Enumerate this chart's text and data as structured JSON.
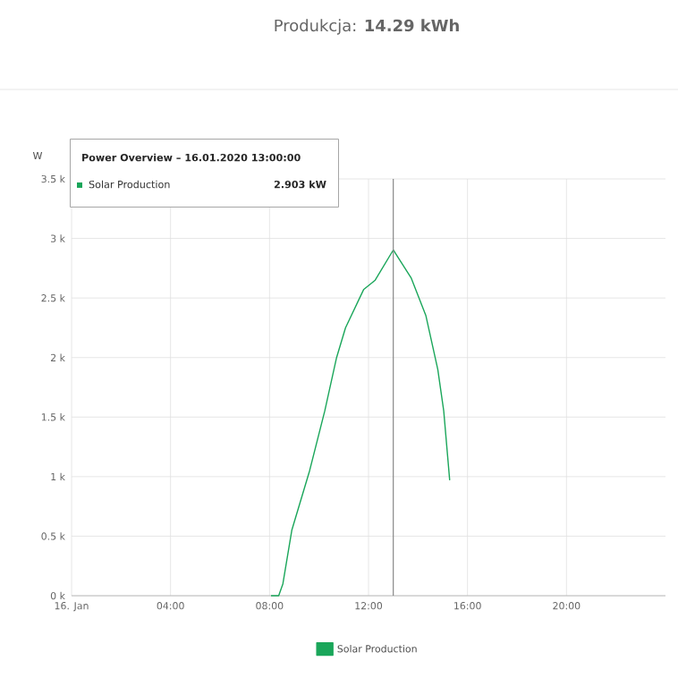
{
  "chart_data": {
    "type": "line",
    "title": "Produkcja: **14.29 kWh**",
    "ylabel": "W",
    "x": [
      8.06,
      8.37,
      8.54,
      8.9,
      9.62,
      10.23,
      10.71,
      11.07,
      11.8,
      12.27,
      13.0,
      13.72,
      14.32,
      14.8,
      15.04,
      15.28
    ],
    "series": [
      {
        "name": "Solar Production",
        "color": "#1aa65a",
        "values": [
          0,
          0,
          100,
          550,
          1050,
          1550,
          2000,
          2250,
          2570,
          2650,
          2903,
          2670,
          2350,
          1900,
          1550,
          970
        ]
      }
    ],
    "xlim": [
      0,
      24
    ],
    "xticks": [
      {
        "value": 0,
        "label": "16. Jan"
      },
      {
        "value": 4,
        "label": "04:00"
      },
      {
        "value": 8,
        "label": "08:00"
      },
      {
        "value": 12,
        "label": "12:00"
      },
      {
        "value": 16,
        "label": "16:00"
      },
      {
        "value": 20,
        "label": "20:00"
      }
    ],
    "ylim": [
      0,
      3500
    ],
    "yticks": [
      {
        "value": 0,
        "label": "0 k"
      },
      {
        "value": 500,
        "label": "0.5 k"
      },
      {
        "value": 1000,
        "label": "1 k"
      },
      {
        "value": 1500,
        "label": "1.5 k"
      },
      {
        "value": 2000,
        "label": "2 k"
      },
      {
        "value": 2500,
        "label": "2.5 k"
      },
      {
        "value": 3000,
        "label": "3 k"
      },
      {
        "value": 3500,
        "label": "3.5 k"
      }
    ],
    "ref_lines": [
      {
        "axis": "x",
        "value": 13,
        "color": "#888888"
      }
    ],
    "annotations": [
      "Power Overview – 16.01.2020 13:00:00",
      "Solar Production",
      "2.903 kW"
    ],
    "grid": true,
    "legend": "bottom",
    "marker": "none",
    "line_style": "solid"
  }
}
